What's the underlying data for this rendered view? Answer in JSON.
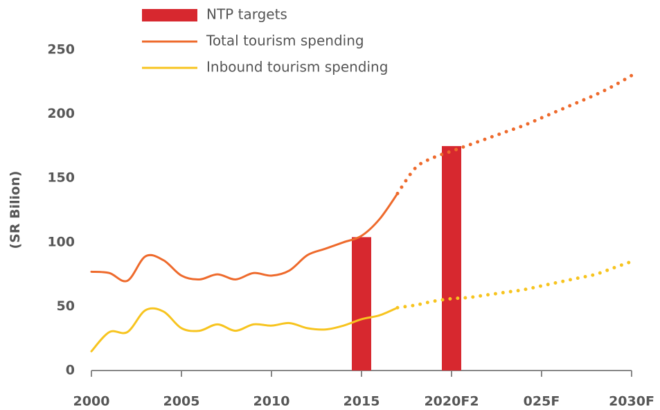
{
  "chart_data": {
    "type": "line",
    "y_label": "(SR Bilion)",
    "xlim": [
      2000,
      2030
    ],
    "ylim": [
      0,
      250
    ],
    "xticks": [
      2000,
      2005,
      2010,
      2015,
      {
        "value": 2020,
        "label": "2020F2"
      },
      {
        "value": 2025,
        "label": "025F"
      },
      {
        "value": 2030,
        "label": "2030F"
      }
    ],
    "yticks": [
      0,
      50,
      100,
      150,
      200,
      250
    ],
    "x": [
      2000,
      2001,
      2002,
      2003,
      2004,
      2005,
      2006,
      2007,
      2008,
      2009,
      2010,
      2011,
      2012,
      2013,
      2014,
      2015,
      2016,
      2017,
      2018,
      2019,
      2020,
      2021,
      2022,
      2023,
      2024,
      2025,
      2026,
      2027,
      2028,
      2029,
      2030
    ],
    "projection_start": 2017,
    "series": [
      {
        "name": "NTP targets",
        "type": "bar",
        "color": "#d7282f",
        "x": [
          2015,
          2020
        ],
        "values": [
          104,
          175
        ]
      },
      {
        "name": "Total tourism spending",
        "type": "line",
        "color": "#ee6a2c",
        "values": [
          77,
          76,
          70,
          89,
          86,
          74,
          71,
          75,
          71,
          76,
          74,
          78,
          90,
          95,
          100,
          105,
          118,
          138,
          158,
          166,
          171,
          176,
          181,
          186,
          191,
          197,
          203,
          209,
          215,
          222,
          230
        ]
      },
      {
        "name": "Inbound tourism spending",
        "type": "line",
        "color": "#f7c41f",
        "values": [
          15,
          30,
          30,
          47,
          46,
          33,
          31,
          36,
          31,
          36,
          35,
          37,
          33,
          32,
          35,
          40,
          43,
          49,
          51,
          54,
          56,
          57,
          59,
          61,
          63,
          66,
          69,
          72,
          75,
          80,
          85
        ]
      }
    ]
  }
}
